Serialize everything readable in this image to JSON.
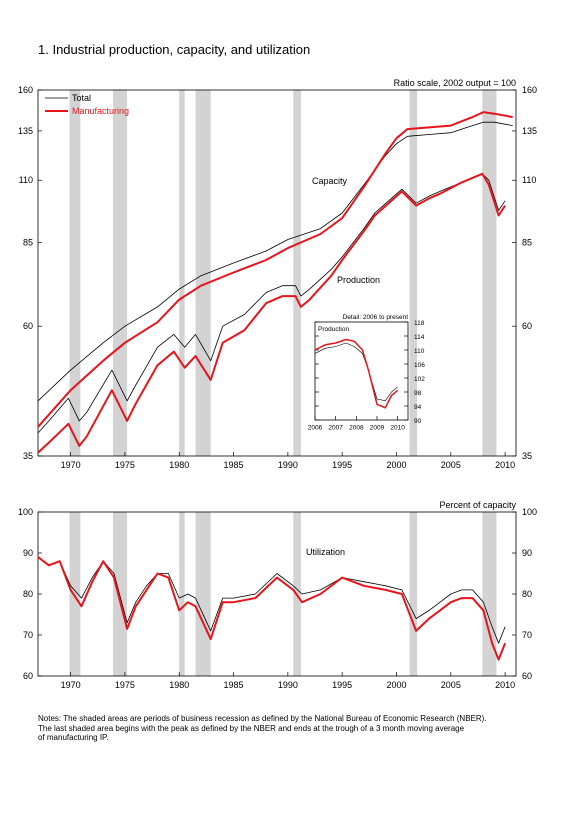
{
  "title": "1.  Industrial production, capacity, and utilization",
  "notes": [
    "  Notes: The shaded areas are periods of business recession as defined by the National Bureau of Economic Research (NBER).",
    "The last shaded area begins with the peak as defined by the NBER and ends at the trough of a 3 month moving average",
    "of manufacturing IP."
  ],
  "colors": {
    "total": "#000000",
    "manufacturing": "#e8141b",
    "recession": "#d3d3d3"
  },
  "chart_data": [
    {
      "type": "line",
      "title": "",
      "scale": "log",
      "scale_note": "Ratio scale, 2002 output = 100",
      "annotations": [
        "Capacity",
        "Production"
      ],
      "xlim": [
        1967,
        2011
      ],
      "ylim": [
        35,
        160
      ],
      "yticks": [
        35,
        60,
        85,
        110,
        135,
        160
      ],
      "xticks": [
        1970,
        1975,
        1980,
        1985,
        1990,
        1995,
        2000,
        2005,
        2010
      ],
      "legend": {
        "placement": "top-left",
        "entries": [
          "Total",
          "Manufacturing"
        ]
      },
      "recessions": [
        [
          1969.9,
          1970.9
        ],
        [
          1973.9,
          1975.2
        ],
        [
          1980.0,
          1980.5
        ],
        [
          1981.5,
          1982.9
        ],
        [
          1990.5,
          1991.2
        ],
        [
          2001.2,
          2001.9
        ],
        [
          2007.9,
          2009.2
        ]
      ],
      "series": [
        {
          "name": "Total",
          "group": "Capacity",
          "x": [
            1967,
            1970,
            1973,
            1975,
            1978,
            1980,
            1982,
            1985,
            1988,
            1990,
            1993,
            1995,
            1997,
            1999,
            2000,
            2001,
            2003,
            2005,
            2007,
            2008,
            2009,
            2010.7
          ],
          "y": [
            44,
            50,
            56,
            60,
            65,
            70,
            74,
            78,
            82,
            86,
            90,
            96,
            108,
            122,
            128,
            132,
            133,
            134,
            138,
            140,
            140,
            138
          ]
        },
        {
          "name": "Manufacturing",
          "group": "Capacity",
          "x": [
            1967,
            1970,
            1973,
            1975,
            1978,
            1980,
            1982,
            1985,
            1988,
            1990,
            1993,
            1995,
            1997,
            1999,
            2000,
            2001,
            2003,
            2005,
            2007,
            2008,
            2009,
            2010.7
          ],
          "y": [
            39.5,
            46,
            52,
            56,
            61,
            67,
            71,
            75,
            79,
            83,
            88,
            94,
            107,
            123,
            131,
            136,
            137,
            138,
            143,
            146,
            145,
            143
          ]
        },
        {
          "name": "Total",
          "group": "Production",
          "x": [
            1967,
            1968,
            1969.8,
            1970.8,
            1971.5,
            1973.8,
            1975.2,
            1976,
            1978,
            1979.5,
            1980.5,
            1981.5,
            1982.9,
            1984,
            1986,
            1988,
            1989.5,
            1990.7,
            1991.2,
            1992,
            1994,
            1995,
            1997,
            1998,
            2000.5,
            2001.8,
            2003,
            2004,
            2006,
            2007.9,
            2008.5,
            2009.4,
            2010.0
          ],
          "y": [
            38.5,
            40.5,
            44.5,
            40.5,
            42,
            50,
            44,
            47,
            55,
            58,
            55,
            58,
            52,
            60,
            63,
            69,
            71,
            71,
            68,
            70,
            76,
            80,
            90,
            96,
            106,
            100,
            103,
            105,
            109,
            113,
            110,
            97,
            101
          ]
        },
        {
          "name": "Manufacturing",
          "group": "Production",
          "x": [
            1967,
            1968,
            1969.8,
            1970.8,
            1971.5,
            1973.8,
            1975.2,
            1976,
            1978,
            1979.5,
            1980.5,
            1981.5,
            1982.9,
            1984,
            1986,
            1988,
            1989.5,
            1990.7,
            1991.2,
            1992,
            1994,
            1995,
            1997,
            1998,
            2000.5,
            2001.8,
            2003,
            2004,
            2006,
            2007.9,
            2008.5,
            2009.4,
            2010.0
          ],
          "y": [
            35.5,
            37,
            40,
            36.5,
            38,
            46,
            40.5,
            43.5,
            51,
            54,
            50.5,
            53,
            48,
            56,
            59,
            66,
            68,
            68,
            65,
            67,
            74,
            79,
            89,
            95,
            105,
            99,
            102,
            104,
            109,
            113,
            108,
            95,
            99
          ]
        }
      ]
    },
    {
      "type": "line",
      "title": "Detail: 2006 to present",
      "subtitle": "Production",
      "xlim": [
        2006,
        2010.5
      ],
      "ylim": [
        90,
        118
      ],
      "yticks": [
        90,
        94,
        98,
        102,
        106,
        110,
        114,
        118
      ],
      "xticks": [
        2006,
        2007,
        2008,
        2009,
        2010
      ],
      "series": [
        {
          "name": "Total",
          "x": [
            2006,
            2006.5,
            2007,
            2007.5,
            2007.9,
            2008.3,
            2008.6,
            2009.0,
            2009.4,
            2009.7,
            2010.0
          ],
          "y": [
            109,
            110.5,
            111,
            112,
            111,
            109,
            104,
            96,
            95.5,
            98,
            99.5
          ]
        },
        {
          "name": "Manufacturing",
          "x": [
            2006,
            2006.5,
            2007,
            2007.5,
            2007.9,
            2008.3,
            2008.6,
            2009.0,
            2009.4,
            2009.7,
            2010.0
          ],
          "y": [
            110,
            111.5,
            112,
            113,
            112.5,
            110,
            104,
            94.5,
            93.5,
            97,
            98.5
          ]
        }
      ]
    },
    {
      "type": "line",
      "title": "",
      "scale_note": "Percent of capacity",
      "annotations": [
        "Utilization"
      ],
      "xlim": [
        1967,
        2011
      ],
      "ylim": [
        60,
        100
      ],
      "yticks": [
        60,
        70,
        80,
        90,
        100
      ],
      "xticks": [
        1970,
        1975,
        1980,
        1985,
        1990,
        1995,
        2000,
        2005,
        2010
      ],
      "recessions": [
        [
          1969.9,
          1970.9
        ],
        [
          1973.9,
          1975.2
        ],
        [
          1980.0,
          1980.5
        ],
        [
          1981.5,
          1982.9
        ],
        [
          1990.5,
          1991.2
        ],
        [
          2001.2,
          2001.9
        ],
        [
          2007.9,
          2009.2
        ]
      ],
      "series": [
        {
          "name": "Total",
          "x": [
            1967,
            1968,
            1969,
            1970,
            1971,
            1972,
            1973,
            1974,
            1975.2,
            1976,
            1977,
            1978,
            1979,
            1980,
            1980.8,
            1981.5,
            1982.9,
            1984,
            1985,
            1987,
            1989,
            1990.5,
            1991.3,
            1993,
            1995,
            1997,
            1999,
            2000.5,
            2001.8,
            2003,
            2004,
            2005,
            2006,
            2007,
            2008,
            2008.8,
            2009.4,
            2010.0
          ],
          "y": [
            89,
            87,
            88,
            82,
            79,
            84,
            88,
            85,
            73,
            78,
            82,
            85,
            85,
            79,
            80,
            79,
            71,
            79,
            79,
            80,
            85,
            82,
            80,
            81,
            84,
            83,
            82,
            81,
            74,
            76,
            78,
            80,
            81,
            81,
            78,
            72,
            68,
            72
          ]
        },
        {
          "name": "Manufacturing",
          "x": [
            1967,
            1968,
            1969,
            1970,
            1971,
            1972,
            1973,
            1974,
            1975.2,
            1976,
            1977,
            1978,
            1979,
            1980,
            1980.8,
            1981.5,
            1982.9,
            1984,
            1985,
            1987,
            1989,
            1990.5,
            1991.3,
            1993,
            1995,
            1997,
            1999,
            2000.5,
            2001.8,
            2003,
            2004,
            2005,
            2006,
            2007,
            2008,
            2008.8,
            2009.4,
            2010.0
          ],
          "y": [
            89,
            87,
            88,
            81,
            77,
            83,
            88,
            84,
            71.5,
            77,
            81,
            85,
            84,
            76,
            78,
            77,
            69,
            78,
            78,
            79,
            84,
            81,
            78,
            80,
            84,
            82,
            81,
            80,
            71,
            74,
            76,
            78,
            79,
            79,
            76,
            68,
            64,
            68
          ]
        }
      ]
    }
  ]
}
